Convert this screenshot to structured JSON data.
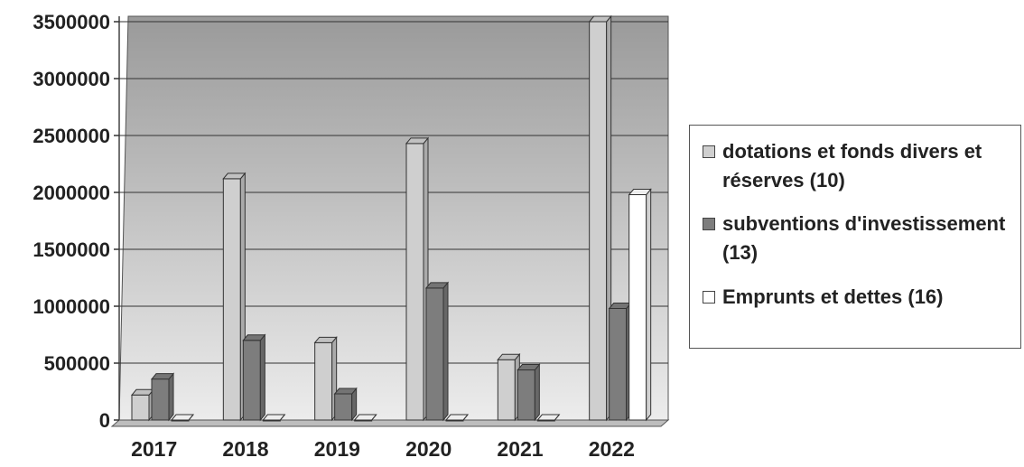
{
  "chart_data": {
    "type": "bar",
    "categories": [
      "2017",
      "2018",
      "2019",
      "2020",
      "2021",
      "2022"
    ],
    "series": [
      {
        "name": "dotations et fonds divers et réserves (10)",
        "color": "#cfcfcf",
        "values": [
          220000,
          2120000,
          680000,
          2430000,
          530000,
          3500000
        ]
      },
      {
        "name": "subventions d'investissement (13)",
        "color": "#7d7d7d",
        "values": [
          360000,
          700000,
          230000,
          1160000,
          440000,
          980000
        ]
      },
      {
        "name": "Emprunts et dettes (16)",
        "color": "#ffffff",
        "values": [
          0,
          0,
          0,
          0,
          0,
          1980000
        ]
      }
    ],
    "yticks": [
      "0",
      "500000",
      "1000000",
      "1500000",
      "2000000",
      "2500000",
      "3000000",
      "3500000"
    ],
    "ylim": [
      0,
      3500000
    ],
    "grid": true,
    "legend_position": "right",
    "style": "3d-clustered-column"
  }
}
